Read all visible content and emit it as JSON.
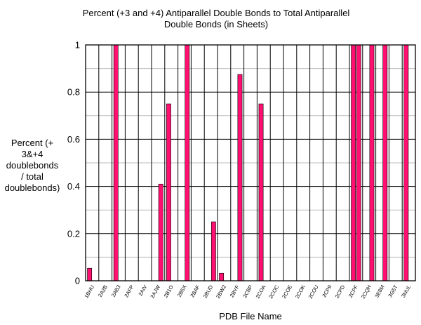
{
  "chart_data": {
    "type": "bar",
    "title_lines": [
      "Percent (+3 and +4) Antiparallel Double Bonds to Total Antiparallel",
      "Double Bonds (in Sheets)"
    ],
    "xlabel": "PDB File Name",
    "ylabel_lines": [
      "Percent (+",
      "3&+4",
      "doublebonds",
      "/ total",
      "doublebonds)"
    ],
    "ylim": [
      0,
      1
    ],
    "yticks": [
      0,
      0.2,
      0.4,
      0.6,
      0.8,
      1
    ],
    "grid": true,
    "categories": [
      "1BHU",
      "2A2B",
      "2AB3",
      "2AFP",
      "2AIV",
      "2AJW",
      "2B1O",
      "2B5X",
      "2BAF",
      "2BUD",
      "2BW2",
      "2BYF",
      "2CBP",
      "2COA",
      "2COC",
      "2COE",
      "2COK",
      "2COU",
      "2CP9",
      "2CPD",
      "2CPF",
      "2CQH",
      "3E8M",
      "3G5T",
      "3NUL"
    ],
    "series": [
      {
        "values": [
          [
            0.053,
            0
          ],
          [
            0,
            0
          ],
          [
            1,
            0
          ],
          [
            0,
            0
          ],
          [
            0,
            0
          ],
          [
            0,
            0.41
          ],
          [
            0.75,
            0
          ],
          [
            0,
            1
          ],
          [
            0,
            0
          ],
          [
            0,
            0.25
          ],
          [
            0.032,
            0
          ],
          [
            0,
            0.875
          ],
          [
            0,
            0
          ],
          [
            0.75,
            0
          ],
          [
            0,
            0
          ],
          [
            0,
            0
          ],
          [
            0,
            0
          ],
          [
            0,
            0
          ],
          [
            0,
            0
          ],
          [
            0,
            0
          ],
          [
            1,
            1
          ],
          [
            0,
            1
          ],
          [
            0,
            1
          ],
          [
            0,
            0
          ],
          [
            1,
            0
          ]
        ]
      }
    ],
    "colors": {
      "bar": "#ff0f6f",
      "grid_major": "#000000",
      "grid_minor": "#bdbdbd"
    }
  }
}
